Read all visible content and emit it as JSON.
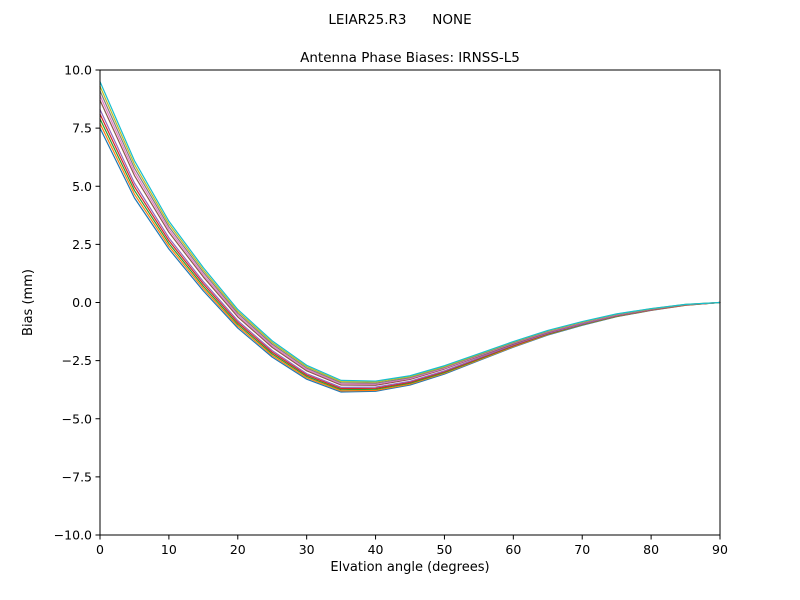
{
  "chart_data": {
    "type": "line",
    "suptitle": "LEIAR25.R3      NONE",
    "title": "Antenna Phase Biases: IRNSS-L5",
    "xlabel": "Elvation angle (degrees)",
    "ylabel": "Bias (mm)",
    "xlim": [
      0,
      90
    ],
    "ylim": [
      -10,
      10
    ],
    "grid": false,
    "legend": "none",
    "xticks": [
      0,
      10,
      20,
      30,
      40,
      50,
      60,
      70,
      80,
      90
    ],
    "xtick_labels": [
      "0",
      "10",
      "20",
      "30",
      "40",
      "50",
      "60",
      "70",
      "80",
      "90"
    ],
    "yticks": [
      -10.0,
      -7.5,
      -5.0,
      -2.5,
      0.0,
      2.5,
      5.0,
      7.5,
      10.0
    ],
    "ytick_labels": [
      "−10.0",
      "−7.5",
      "−5.0",
      "−2.5",
      "0.0",
      "2.5",
      "5.0",
      "7.5",
      "10.0"
    ],
    "x": [
      0,
      5,
      10,
      15,
      20,
      25,
      30,
      35,
      40,
      45,
      50,
      55,
      60,
      65,
      70,
      75,
      80,
      85,
      90
    ],
    "series": [
      {
        "name": "line-1",
        "color": "#1f77b4",
        "values": [
          7.5,
          4.5,
          2.3,
          0.5,
          -1.1,
          -2.35,
          -3.3,
          -3.85,
          -3.82,
          -3.55,
          -3.08,
          -2.5,
          -1.92,
          -1.4,
          -0.98,
          -0.61,
          -0.34,
          -0.12,
          0.0
        ]
      },
      {
        "name": "line-2",
        "color": "#ff7f0e",
        "values": [
          7.7,
          4.66,
          2.42,
          0.6,
          -1.02,
          -2.28,
          -3.24,
          -3.8,
          -3.78,
          -3.51,
          -3.04,
          -2.47,
          -1.9,
          -1.38,
          -0.96,
          -0.6,
          -0.33,
          -0.12,
          0.0
        ]
      },
      {
        "name": "line-3",
        "color": "#2ca02c",
        "values": [
          7.9,
          4.82,
          2.54,
          0.7,
          -0.94,
          -2.21,
          -3.18,
          -3.75,
          -3.73,
          -3.47,
          -3.01,
          -2.44,
          -1.87,
          -1.36,
          -0.95,
          -0.59,
          -0.32,
          -0.11,
          0.0
        ]
      },
      {
        "name": "line-4",
        "color": "#d62728",
        "values": [
          8.1,
          4.98,
          2.66,
          0.8,
          -0.86,
          -2.14,
          -3.12,
          -3.7,
          -3.69,
          -3.43,
          -2.97,
          -2.41,
          -1.85,
          -1.34,
          -0.93,
          -0.57,
          -0.32,
          -0.11,
          0.0
        ]
      },
      {
        "name": "line-5",
        "color": "#9467bd",
        "values": [
          8.3,
          5.14,
          2.78,
          0.9,
          -0.78,
          -2.07,
          -3.06,
          -3.65,
          -3.64,
          -3.39,
          -2.94,
          -2.38,
          -1.82,
          -1.32,
          -0.92,
          -0.56,
          -0.31,
          -0.1,
          0.0
        ]
      },
      {
        "name": "line-6",
        "color": "#8c564b",
        "values": [
          8.7,
          5.46,
          3.02,
          1.1,
          -0.62,
          -1.93,
          -2.94,
          -3.55,
          -3.56,
          -3.31,
          -2.86,
          -2.32,
          -1.78,
          -1.28,
          -0.88,
          -0.54,
          -0.29,
          -0.1,
          0.0
        ]
      },
      {
        "name": "line-7",
        "color": "#e377c2",
        "values": [
          8.9,
          5.62,
          3.14,
          1.2,
          -0.54,
          -1.86,
          -2.88,
          -3.5,
          -3.51,
          -3.27,
          -2.83,
          -2.29,
          -1.75,
          -1.26,
          -0.87,
          -0.53,
          -0.28,
          -0.09,
          0.0
        ]
      },
      {
        "name": "line-8",
        "color": "#7f7f7f",
        "values": [
          9.1,
          5.78,
          3.26,
          1.3,
          -0.46,
          -1.79,
          -2.82,
          -3.45,
          -3.47,
          -3.23,
          -2.79,
          -2.26,
          -1.73,
          -1.24,
          -0.85,
          -0.51,
          -0.28,
          -0.09,
          0.0
        ]
      },
      {
        "name": "line-9",
        "color": "#bcbd22",
        "values": [
          9.3,
          5.94,
          3.38,
          1.4,
          -0.38,
          -1.72,
          -2.76,
          -3.4,
          -3.42,
          -3.19,
          -2.76,
          -2.23,
          -1.7,
          -1.22,
          -0.84,
          -0.5,
          -0.27,
          -0.08,
          0.0
        ]
      },
      {
        "name": "line-10",
        "color": "#17becf",
        "values": [
          9.5,
          6.1,
          3.5,
          1.5,
          -0.3,
          -1.65,
          -2.7,
          -3.35,
          -3.38,
          -3.15,
          -2.72,
          -2.2,
          -1.68,
          -1.2,
          -0.82,
          -0.49,
          -0.26,
          -0.08,
          0.0
        ]
      }
    ]
  }
}
